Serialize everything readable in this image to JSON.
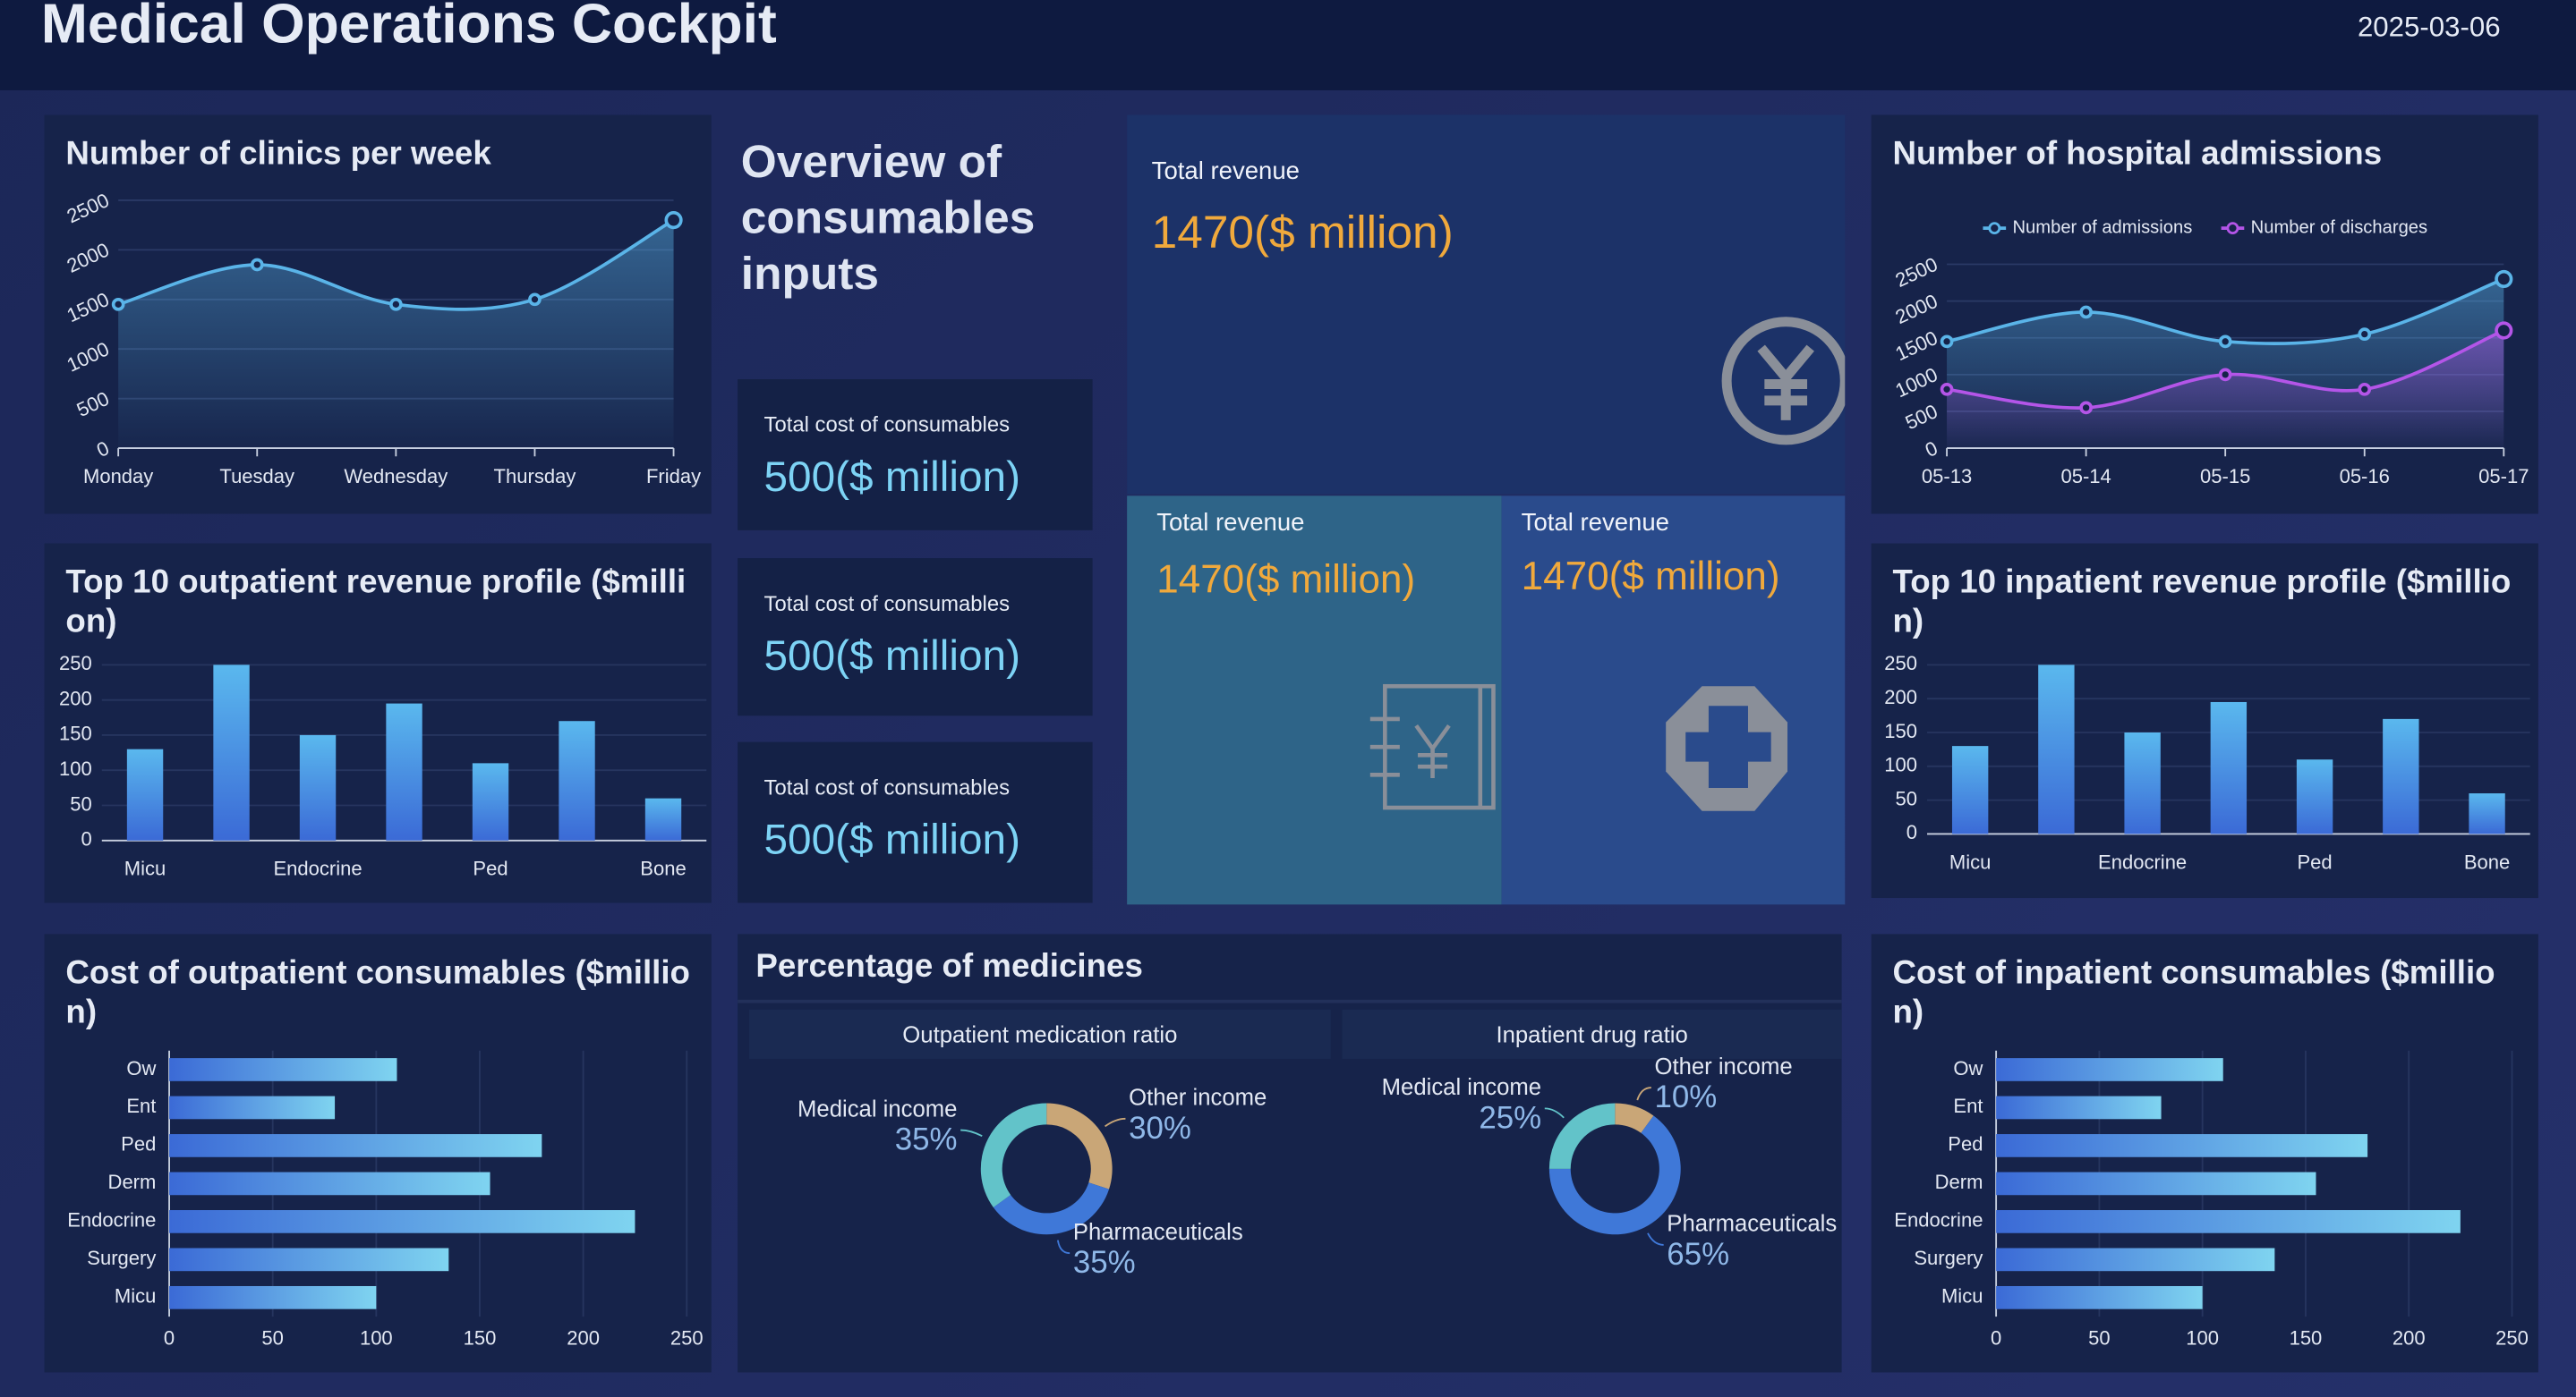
{
  "header": {
    "title": "Medical Operations Cockpit",
    "date": "2025-03-06"
  },
  "overview": {
    "heading": "Overview of consumables inputs",
    "cards": [
      {
        "label": "Total cost of consumables",
        "value": "500($ million)"
      },
      {
        "label": "Total cost of consumables",
        "value": "500($ million)"
      },
      {
        "label": "Total cost of consumables",
        "value": "500($ million)"
      }
    ],
    "revenue": [
      {
        "label": "Total revenue",
        "value": "1470($ million)"
      },
      {
        "label": "Total revenue",
        "value": "1470($ million)"
      },
      {
        "label": "Total revenue",
        "value": "1470($ million)"
      }
    ]
  },
  "medicines": {
    "title": "Percentage of medicines"
  },
  "chart_data": [
    {
      "type": "line",
      "title": "Number of clinics per week",
      "categories": [
        "Monday",
        "Tuesday",
        "Wednesday",
        "Thursday",
        "Friday"
      ],
      "series": [
        {
          "color": "#5ab4e8",
          "values": [
            1450,
            1850,
            1450,
            1500,
            2300
          ]
        }
      ],
      "ylim": [
        0,
        2500
      ],
      "yticks": [
        0,
        500,
        1000,
        1500,
        2000,
        2500
      ],
      "grid": true
    },
    {
      "type": "bar",
      "title": "Top 10 outpatient revenue profile ($million)",
      "categories": [
        "Micu",
        null,
        "Endocrine",
        null,
        "Ped",
        null,
        "Bone"
      ],
      "values": [
        130,
        250,
        150,
        195,
        110,
        170,
        60
      ],
      "color": [
        "#5ab8ee",
        "#3b6ad6"
      ],
      "ylim": [
        0,
        250
      ],
      "yticks": [
        0,
        50,
        100,
        150,
        200,
        250
      ],
      "grid": true
    },
    {
      "type": "hbar",
      "title": "Cost of outpatient consumables ($million)",
      "categories": [
        "Ow",
        "Ent",
        "Ped",
        "Derm",
        "Endocrine",
        "Surgery",
        "Micu"
      ],
      "values": [
        110,
        80,
        180,
        155,
        225,
        135,
        100
      ],
      "color": [
        "#3b6ad6",
        "#7fd4f0"
      ],
      "xlim": [
        0,
        250
      ],
      "xticks": [
        0,
        50,
        100,
        150,
        200,
        250
      ],
      "grid": true
    },
    {
      "type": "line",
      "title": "Number of hospital admissions",
      "categories": [
        "05-13",
        "05-14",
        "05-15",
        "05-16",
        "05-17"
      ],
      "series": [
        {
          "name": "Number of admissions",
          "color": "#5ab4e8",
          "values": [
            1450,
            1850,
            1450,
            1550,
            2300
          ]
        },
        {
          "name": "Number of discharges",
          "color": "#b455e8",
          "values": [
            800,
            550,
            1000,
            800,
            1600
          ]
        }
      ],
      "ylim": [
        0,
        2500
      ],
      "yticks": [
        0,
        500,
        1000,
        1500,
        2000,
        2500
      ],
      "grid": true,
      "legend": "top"
    },
    {
      "type": "bar",
      "title": "Top 10 inpatient revenue profile ($million)",
      "categories": [
        "Micu",
        null,
        "Endocrine",
        null,
        "Ped",
        null,
        "Bone"
      ],
      "values": [
        130,
        250,
        150,
        195,
        110,
        170,
        60
      ],
      "color": [
        "#5ab8ee",
        "#3b6ad6"
      ],
      "ylim": [
        0,
        250
      ],
      "yticks": [
        0,
        50,
        100,
        150,
        200,
        250
      ],
      "grid": true
    },
    {
      "type": "hbar",
      "title": "Cost of inpatient consumables ($million)",
      "categories": [
        "Ow",
        "Ent",
        "Ped",
        "Derm",
        "Endocrine",
        "Surgery",
        "Micu"
      ],
      "values": [
        110,
        80,
        180,
        155,
        225,
        135,
        100
      ],
      "color": [
        "#3b6ad6",
        "#7fd4f0"
      ],
      "xlim": [
        0,
        250
      ],
      "xticks": [
        0,
        50,
        100,
        150,
        200,
        250
      ],
      "grid": true
    },
    {
      "type": "donut",
      "title": "Outpatient medication ratio",
      "categories": [
        "Other income",
        "Pharmaceuticals",
        "Medical income"
      ],
      "values": [
        30,
        35,
        35
      ],
      "value_labels": [
        "30%",
        "35%",
        "35%"
      ],
      "colors": [
        "#c9a677",
        "#3f78d8",
        "#62c3c9"
      ]
    },
    {
      "type": "donut",
      "title": "Inpatient drug ratio",
      "categories": [
        "Other income",
        "Pharmaceuticals",
        "Medical income"
      ],
      "values": [
        10,
        65,
        25
      ],
      "value_labels": [
        "10%",
        "65%",
        "25%"
      ],
      "colors": [
        "#c9a677",
        "#3f78d8",
        "#62c3c9"
      ]
    }
  ]
}
